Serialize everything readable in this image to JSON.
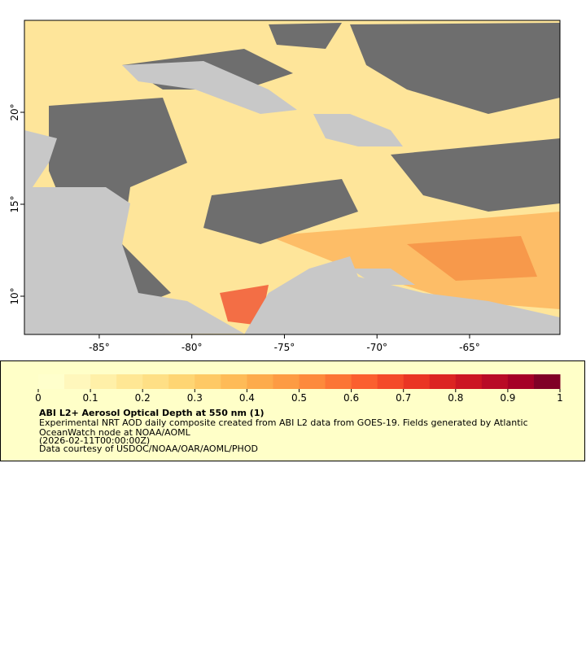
{
  "map": {
    "xlim": [
      -89.04,
      -60.12
    ],
    "ylim": [
      7.92,
      25
    ],
    "lon_ticks": [
      {
        "value": -85,
        "label": "-85°"
      },
      {
        "value": -80,
        "label": "-80°"
      },
      {
        "value": -75,
        "label": "-75°"
      },
      {
        "value": -70,
        "label": "-70°"
      },
      {
        "value": -65,
        "label": "-65°"
      }
    ],
    "lat_ticks": [
      {
        "value": 10,
        "label": "10°"
      },
      {
        "value": 15,
        "label": "15°"
      },
      {
        "value": 20,
        "label": "20°"
      }
    ]
  },
  "colorbar": {
    "lim": [
      0,
      1
    ],
    "ticks": [
      0,
      0.1,
      0.2,
      0.3,
      0.4,
      0.5,
      0.6,
      0.7,
      0.8,
      0.9,
      1
    ],
    "colors": [
      "#ffffcc",
      "#fff7bc",
      "#fff0a8",
      "#ffe794",
      "#fedf85",
      "#fed573",
      "#fec965",
      "#febb57",
      "#fdab4b",
      "#fd9b43",
      "#fd8a3c",
      "#fc7535",
      "#fb5f2f",
      "#f44a29",
      "#ea3524",
      "#dc2422",
      "#cc1523",
      "#b90b26",
      "#a50026",
      "#800026"
    ]
  },
  "legend": {
    "title": "ABI L2+ Aerosol Optical Depth at 550 nm (1)",
    "lines": [
      "Experimental NRT AOD daily composite created from ABI L2 data from GOES-19. Fields generated by Atlantic",
      "OceanWatch node at NOAA/AOML",
      "(2026-02-11T00:00:00Z)",
      "Data courtesy of USDOC/NOAA/OAR/AOML/PHOD"
    ]
  }
}
